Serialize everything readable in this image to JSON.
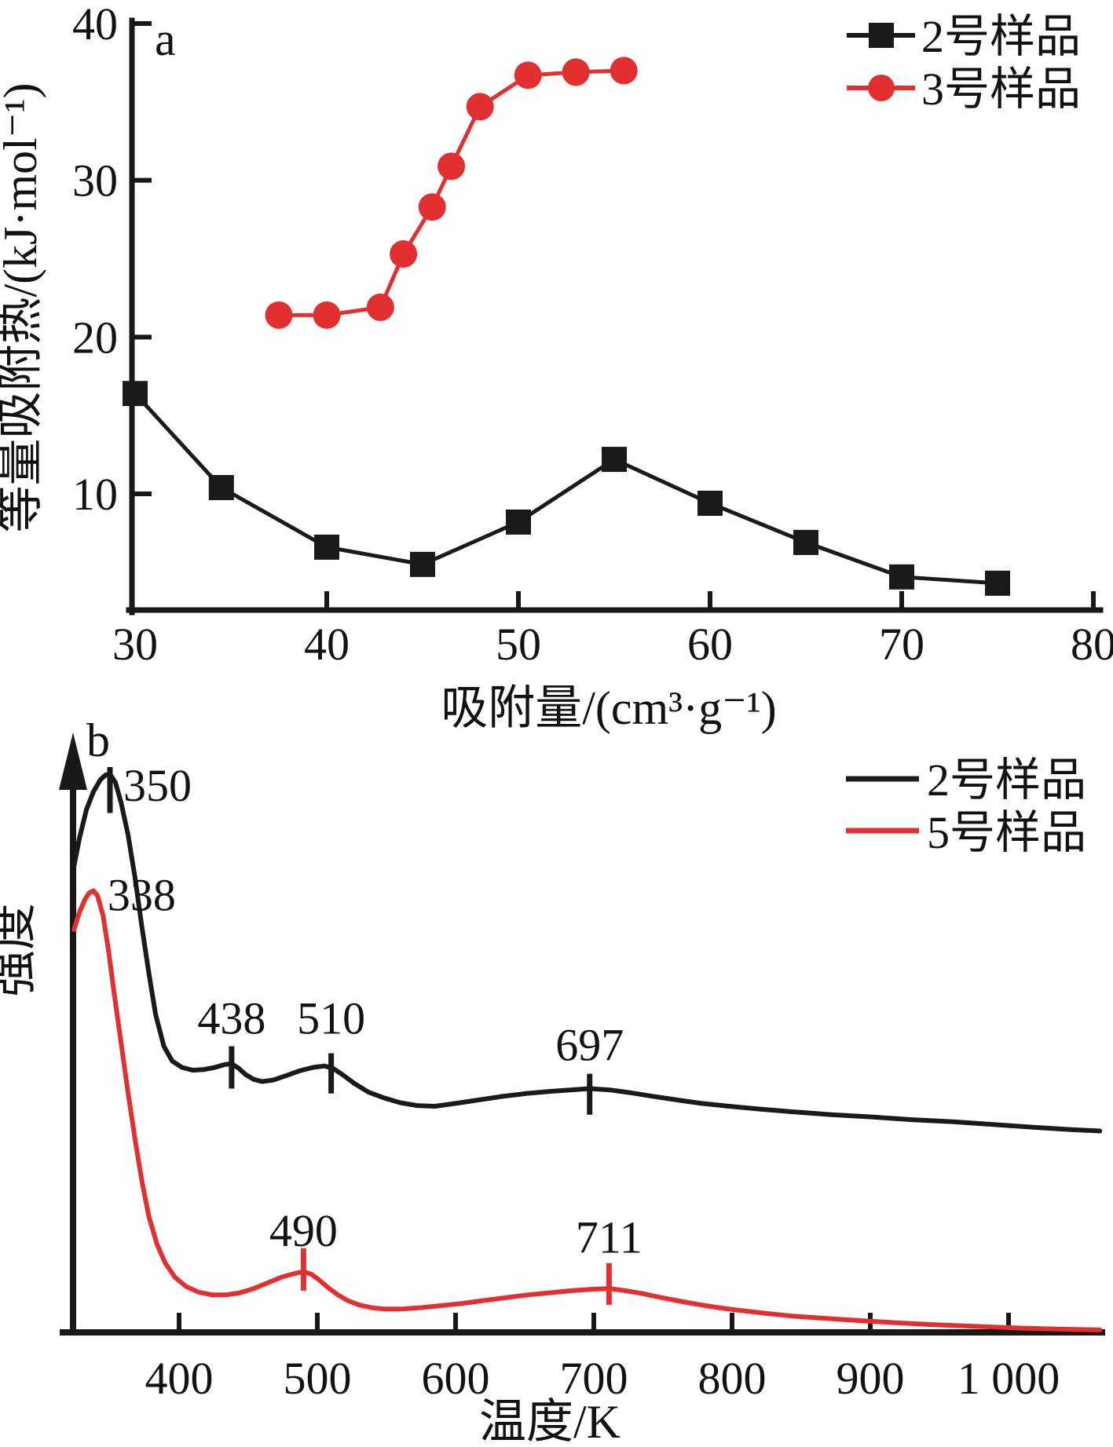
{
  "figure_title": "",
  "panel_a": {
    "panel_label": "a",
    "xlabel": "吸附量/(cm³·g⁻¹)",
    "ylabel": "等量吸附热/(kJ·mol⁻¹)",
    "legend": [
      "2号样品",
      "3号样品"
    ]
  },
  "panel_b": {
    "panel_label": "b",
    "xlabel": "温度/K",
    "ylabel": "强度",
    "legend": [
      "2号样品",
      "5号样品"
    ]
  },
  "colors": {
    "black_series": "#1c1919",
    "red_series": "#e23030",
    "axis": "#1a1717"
  },
  "chart_data": [
    {
      "type": "line",
      "panel_label": "a",
      "xlabel": "吸附量/(cm³·g⁻¹)",
      "ylabel": "等量吸附热/(kJ·mol⁻¹)",
      "xlim": [
        29.8,
        80.4
      ],
      "ylim": [
        2.6,
        40.5
      ],
      "xticks": [
        30,
        40,
        50,
        60,
        70,
        80
      ],
      "yticks": [
        10,
        20,
        30,
        40
      ],
      "grid": false,
      "legend_position": "top-right",
      "series": [
        {
          "name": "2号样品",
          "color": "#1c1919",
          "marker": "square",
          "points": [
            [
              30,
              16.4
            ],
            [
              34.5,
              10.4
            ],
            [
              40,
              6.6
            ],
            [
              45,
              5.5
            ],
            [
              50,
              8.2
            ],
            [
              55,
              12.2
            ],
            [
              60,
              9.4
            ],
            [
              65,
              6.9
            ],
            [
              70,
              4.7
            ],
            [
              75,
              4.3
            ]
          ]
        },
        {
          "name": "3号样品",
          "color": "#e23030",
          "marker": "circle",
          "points": [
            [
              37.5,
              21.4
            ],
            [
              40,
              21.4
            ],
            [
              42.8,
              21.9
            ],
            [
              44,
              25.3
            ],
            [
              45.5,
              28.3
            ],
            [
              46.5,
              30.9
            ],
            [
              48,
              34.7
            ],
            [
              50.5,
              36.7
            ],
            [
              53,
              36.9
            ],
            [
              55.5,
              37.0
            ]
          ]
        }
      ]
    },
    {
      "type": "line",
      "panel_label": "b",
      "xlabel": "温度/K",
      "ylabel": "强度",
      "xlim": [
        316,
        1066
      ],
      "ylim": [
        0,
        100
      ],
      "ylabel_note": "intensity, arbitrary units",
      "xticks": [
        400,
        500,
        600,
        700,
        800,
        900,
        1000
      ],
      "xtick_labels": [
        "400",
        "500",
        "600",
        "700",
        "800",
        "900",
        "1 000"
      ],
      "grid": false,
      "legend_position": "top-right",
      "series": [
        {
          "name": "2号样品",
          "color": "#1c1919",
          "marker": "none",
          "points": [
            [
              324,
              66
            ],
            [
              328,
              70
            ],
            [
              333,
              74
            ],
            [
              338,
              76.5
            ],
            [
              343,
              78.2
            ],
            [
              347,
              78.9
            ],
            [
              350,
              79
            ],
            [
              354,
              77.8
            ],
            [
              358,
              75
            ],
            [
              363,
              70.5
            ],
            [
              368,
              64.5
            ],
            [
              373,
              57.5
            ],
            [
              378,
              51
            ],
            [
              383,
              45
            ],
            [
              389,
              40.5
            ],
            [
              395,
              38.4
            ],
            [
              402,
              37.5
            ],
            [
              410,
              37.1
            ],
            [
              418,
              37.2
            ],
            [
              426,
              37.5
            ],
            [
              433,
              37.9
            ],
            [
              438,
              38.0
            ],
            [
              443,
              37.4
            ],
            [
              448,
              36.5
            ],
            [
              454,
              35.8
            ],
            [
              460,
              35.5
            ],
            [
              468,
              35.7
            ],
            [
              477,
              36.3
            ],
            [
              487,
              37.0
            ],
            [
              497,
              37.5
            ],
            [
              505,
              37.7
            ],
            [
              511,
              37.4
            ],
            [
              518,
              36.5
            ],
            [
              527,
              35.2
            ],
            [
              537,
              34.0
            ],
            [
              548,
              33.2
            ],
            [
              560,
              32.5
            ],
            [
              572,
              32.1
            ],
            [
              585,
              32.0
            ],
            [
              600,
              32.4
            ],
            [
              617,
              32.9
            ],
            [
              634,
              33.4
            ],
            [
              651,
              33.8
            ],
            [
              668,
              34.1
            ],
            [
              683,
              34.3
            ],
            [
              697,
              34.5
            ],
            [
              712,
              34.3
            ],
            [
              727,
              33.9
            ],
            [
              743,
              33.4
            ],
            [
              760,
              32.9
            ],
            [
              778,
              32.4
            ],
            [
              798,
              32.0
            ],
            [
              820,
              31.6
            ],
            [
              845,
              31.2
            ],
            [
              872,
              30.8
            ],
            [
              900,
              30.5
            ],
            [
              930,
              30.1
            ],
            [
              960,
              29.8
            ],
            [
              990,
              29.4
            ],
            [
              1020,
              29.0
            ],
            [
              1045,
              28.7
            ],
            [
              1066,
              28.5
            ]
          ]
        },
        {
          "name": "5号样品",
          "color": "#e23030",
          "marker": "none",
          "points": [
            [
              324,
              57
            ],
            [
              328,
              59.5
            ],
            [
              332,
              61.3
            ],
            [
              335,
              62.2
            ],
            [
              338,
              62.5
            ],
            [
              341,
              61.8
            ],
            [
              345,
              59
            ],
            [
              349,
              54
            ],
            [
              353,
              48
            ],
            [
              358,
              41
            ],
            [
              363,
              34
            ],
            [
              368,
              27.5
            ],
            [
              373,
              21.5
            ],
            [
              378,
              16.5
            ],
            [
              384,
              12.5
            ],
            [
              390,
              9.8
            ],
            [
              397,
              7.8
            ],
            [
              405,
              6.5
            ],
            [
              414,
              5.7
            ],
            [
              424,
              5.3
            ],
            [
              434,
              5.3
            ],
            [
              444,
              5.6
            ],
            [
              454,
              6.2
            ],
            [
              464,
              7.0
            ],
            [
              474,
              7.8
            ],
            [
              483,
              8.3
            ],
            [
              490,
              8.6
            ],
            [
              496,
              8.2
            ],
            [
              502,
              7.3
            ],
            [
              508,
              6.3
            ],
            [
              515,
              5.3
            ],
            [
              522,
              4.5
            ],
            [
              530,
              3.9
            ],
            [
              539,
              3.5
            ],
            [
              549,
              3.3
            ],
            [
              561,
              3.3
            ],
            [
              575,
              3.5
            ],
            [
              590,
              3.8
            ],
            [
              605,
              4.1
            ],
            [
              620,
              4.5
            ],
            [
              636,
              4.9
            ],
            [
              652,
              5.3
            ],
            [
              668,
              5.6
            ],
            [
              684,
              5.9
            ],
            [
              698,
              6.1
            ],
            [
              711,
              6.2
            ],
            [
              723,
              5.9
            ],
            [
              735,
              5.5
            ],
            [
              747,
              5.0
            ],
            [
              760,
              4.5
            ],
            [
              774,
              4.0
            ],
            [
              790,
              3.5
            ],
            [
              806,
              3.1
            ],
            [
              824,
              2.7
            ],
            [
              844,
              2.3
            ],
            [
              866,
              2.0
            ],
            [
              890,
              1.7
            ],
            [
              915,
              1.4
            ],
            [
              945,
              1.1
            ],
            [
              975,
              0.85
            ],
            [
              1010,
              0.6
            ],
            [
              1040,
              0.45
            ],
            [
              1066,
              0.35
            ]
          ]
        }
      ],
      "annotations": [
        {
          "label": "350",
          "x": 350,
          "series": 0,
          "tick": [
            80.0,
            73.5
          ],
          "label_dx": 17,
          "label_i": 75.2,
          "anchor": "start"
        },
        {
          "label": "338",
          "x": 338,
          "series": 1,
          "tick": null,
          "label_dx": 18,
          "label_i": 59.7,
          "anchor": "start"
        },
        {
          "label": "438",
          "x": 438,
          "series": 0,
          "tick": [
            40.5,
            34.5
          ],
          "label_dx": 0,
          "label_i": 42.3,
          "anchor": "middle"
        },
        {
          "label": "510",
          "x": 510,
          "series": 0,
          "tick": [
            39.5,
            33.8
          ],
          "label_dx": 0,
          "label_i": 42.3,
          "anchor": "middle"
        },
        {
          "label": "697",
          "x": 697,
          "series": 0,
          "tick": [
            36.6,
            30.8
          ],
          "label_dx": 0,
          "label_i": 38.5,
          "anchor": "middle"
        },
        {
          "label": "490",
          "x": 490,
          "series": 1,
          "tick": [
            11.9,
            5.9
          ],
          "label_dx": 0,
          "label_i": 12.2,
          "anchor": "middle"
        },
        {
          "label": "711",
          "x": 711,
          "series": 1,
          "tick": [
            9.8,
            3.9
          ],
          "label_dx": 0,
          "label_i": 11.3,
          "anchor": "middle"
        }
      ]
    }
  ]
}
